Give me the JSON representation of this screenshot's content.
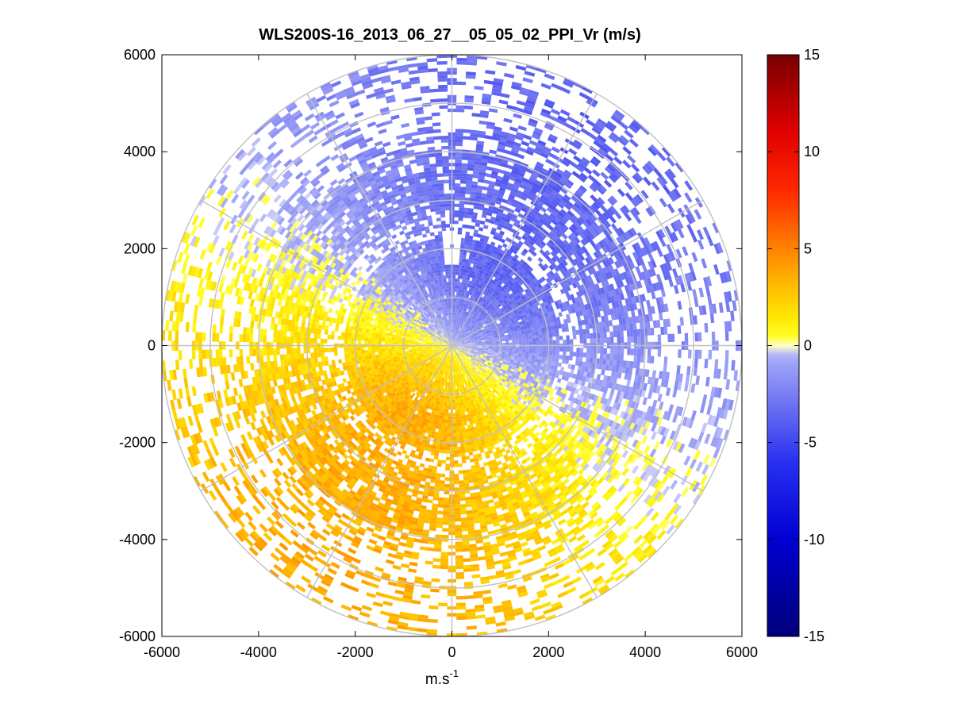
{
  "chart_data": {
    "type": "heatmap",
    "subtype": "polar-ppi",
    "title": "WLS200S-16_2013_06_27__05_05_02_PPI_Vr (m/s)",
    "xlabel": "m.s",
    "xlabel_superscript": "-1",
    "ylabel": "",
    "xlim": [
      -6000,
      6000
    ],
    "ylim": [
      -6000,
      6000
    ],
    "x_ticks": [
      "-6000",
      "-4000",
      "-2000",
      "0",
      "2000",
      "4000",
      "6000"
    ],
    "y_ticks": [
      "6000",
      "4000",
      "2000",
      "0",
      "-2000",
      "-4000",
      "-6000"
    ],
    "range_rings_m": [
      1000,
      2000,
      3000,
      4000,
      5000,
      6000
    ],
    "spokes_deg": [
      0,
      30,
      60,
      90,
      120,
      150,
      180,
      210,
      240,
      270,
      300,
      330
    ],
    "colorbar": {
      "min": -15,
      "max": 15,
      "ticks": [
        "15",
        "10",
        "5",
        "0",
        "-5",
        "-10",
        "-15"
      ],
      "colormap": "blue-white-yellow-red"
    },
    "field_description_values": {
      "max_range_m": 6000,
      "approach_sector_center_deg": 60,
      "recede_sector_center_deg": 240,
      "typical_abs_vr_ms": [
        0.5,
        4
      ]
    }
  },
  "colors": {
    "ring": "#c0c0c0",
    "axis": "#000000",
    "positive": "#ffee00",
    "negative": "#7377f5"
  }
}
